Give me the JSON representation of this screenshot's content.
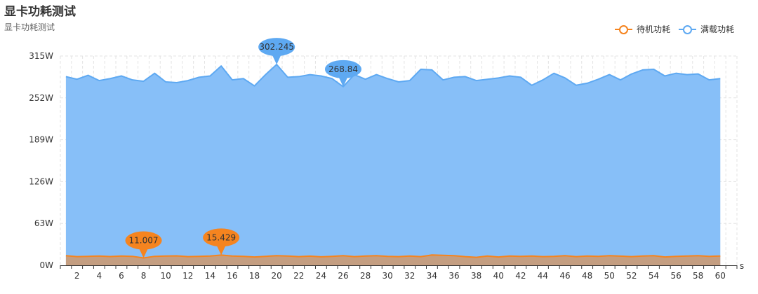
{
  "header": {
    "title": "显卡功耗测试",
    "subtitle": "显卡功耗测试"
  },
  "chart_data": {
    "type": "area",
    "title": "显卡功耗测试",
    "subtitle": "显卡功耗测试",
    "xlabel": "s",
    "ylabel": "",
    "x": [
      1,
      2,
      3,
      4,
      5,
      6,
      7,
      8,
      9,
      10,
      11,
      12,
      13,
      14,
      15,
      16,
      17,
      18,
      19,
      20,
      21,
      22,
      23,
      24,
      25,
      26,
      27,
      28,
      29,
      30,
      31,
      32,
      33,
      34,
      35,
      36,
      37,
      38,
      39,
      40,
      41,
      42,
      43,
      44,
      45,
      46,
      47,
      48,
      49,
      50,
      51,
      52,
      53,
      54,
      55,
      56,
      57,
      58,
      59,
      60
    ],
    "x_tick_labels": [
      "2",
      "4",
      "6",
      "8",
      "10",
      "12",
      "14",
      "16",
      "18",
      "20",
      "22",
      "24",
      "26",
      "28",
      "30",
      "32",
      "34",
      "36",
      "38",
      "40",
      "42",
      "44",
      "46",
      "48",
      "50",
      "52",
      "54",
      "56",
      "58",
      "60"
    ],
    "y_tick_labels": [
      "0W",
      "63W",
      "126W",
      "189W",
      "252W",
      "315W"
    ],
    "ylim": [
      0,
      315
    ],
    "grid": true,
    "legend_position": "top-right",
    "series": [
      {
        "name": "待机功耗",
        "color": "#F5841F",
        "values": [
          14.5,
          13.0,
          13.5,
          14.0,
          13.2,
          14.0,
          13.5,
          11.007,
          13.5,
          14.0,
          14.2,
          13.0,
          13.5,
          14.0,
          15.429,
          14.0,
          13.5,
          12.5,
          13.5,
          14.5,
          14.0,
          13.0,
          13.8,
          12.8,
          13.5,
          14.5,
          13.0,
          14.0,
          14.5,
          13.5,
          13.0,
          14.0,
          13.0,
          15.5,
          15.0,
          14.5,
          13.0,
          12.0,
          14.0,
          12.5,
          14.0,
          13.5,
          14.0,
          13.0,
          13.5,
          14.5,
          13.0,
          14.0,
          13.5,
          14.5,
          13.8,
          13.0,
          14.0,
          14.5,
          12.5,
          13.5,
          14.0,
          14.5,
          13.5,
          14.0
        ],
        "markers": [
          {
            "label": "11.007",
            "x": 8,
            "y": 11.007
          },
          {
            "label": "15.429",
            "x": 15,
            "y": 15.429
          }
        ]
      },
      {
        "name": "满载功耗",
        "color": "#5EA9F2",
        "area_color": "#87BFF8",
        "values": [
          284,
          280,
          286,
          278,
          281,
          285,
          279,
          277,
          289,
          276,
          275,
          278,
          283,
          285,
          300,
          279,
          281,
          270,
          287,
          302.245,
          283,
          284,
          287,
          285,
          281,
          268.84,
          287,
          280,
          287,
          281,
          276,
          278,
          295,
          294,
          279,
          283,
          284,
          278,
          280,
          282,
          285,
          283,
          271,
          279,
          289,
          282,
          271,
          274,
          280,
          287,
          279,
          288,
          294,
          295,
          285,
          289,
          287,
          288,
          279,
          281
        ],
        "markers": [
          {
            "label": "302.245",
            "x": 20,
            "y": 302.245
          },
          {
            "label": "268.84",
            "x": 26,
            "y": 268.84
          }
        ]
      }
    ]
  }
}
